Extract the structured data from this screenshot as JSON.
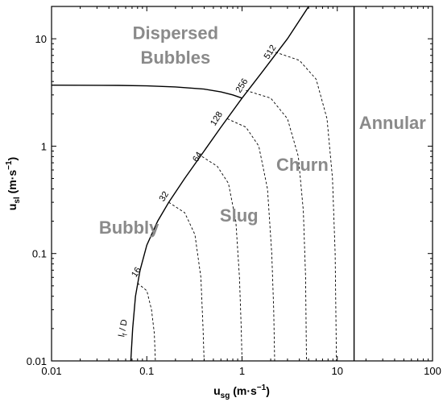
{
  "chart_data": {
    "type": "line",
    "title": "",
    "xlabel": {
      "base": "u",
      "sub": "sg",
      "unit": " (m·s",
      "sup": "−1",
      "close": ")"
    },
    "ylabel": {
      "base": "u",
      "sub": "sl",
      "unit": " (m·s",
      "sup": "−1",
      "close": ")"
    },
    "xscale": "log",
    "yscale": "log",
    "xlim": [
      0.01,
      100
    ],
    "ylim": [
      0.01,
      20
    ],
    "grid": false,
    "x_ticks": [
      0.01,
      0.1,
      1,
      10,
      100
    ],
    "x_tick_labels": [
      "0.01",
      "0.1",
      "1",
      "10",
      "100"
    ],
    "y_ticks": [
      0.01,
      0.1,
      1,
      10
    ],
    "y_tick_labels": [
      "0.01",
      "0.1",
      "1",
      "10"
    ],
    "regions": [
      {
        "label": "Dispersed",
        "x": 0.2,
        "y": 11
      },
      {
        "label": "Bubbles",
        "x": 0.2,
        "y": 6.5
      },
      {
        "label": "Churn",
        "x": 4.3,
        "y": 0.65
      },
      {
        "label": "Annular",
        "x": 38,
        "y": 1.6
      },
      {
        "label": "Slug",
        "x": 0.93,
        "y": 0.22
      },
      {
        "label": "Bubbly",
        "x": 0.065,
        "y": 0.17
      }
    ],
    "boundaries": [
      {
        "id": "bubbly-slug",
        "style": "solid",
        "points": [
          [
            0.068,
            0.01
          ],
          [
            0.071,
            0.02
          ],
          [
            0.076,
            0.04
          ],
          [
            0.085,
            0.07
          ],
          [
            0.1,
            0.12
          ],
          [
            0.13,
            0.2
          ],
          [
            0.17,
            0.3
          ],
          [
            0.25,
            0.5
          ],
          [
            0.4,
            0.9
          ],
          [
            0.6,
            1.5
          ],
          [
            1,
            2.8
          ],
          [
            1.6,
            4.8
          ],
          [
            3,
            10
          ],
          [
            5,
            20
          ]
        ]
      },
      {
        "id": "dispersed-bubbles",
        "style": "solid",
        "points": [
          [
            0.01,
            3.7
          ],
          [
            0.05,
            3.68
          ],
          [
            0.1,
            3.64
          ],
          [
            0.2,
            3.56
          ],
          [
            0.4,
            3.4
          ],
          [
            0.6,
            3.2
          ],
          [
            0.8,
            3.0
          ],
          [
            1,
            2.8
          ]
        ]
      },
      {
        "id": "annular",
        "style": "solid",
        "points": [
          [
            15,
            0.01
          ],
          [
            15,
            20
          ]
        ]
      }
    ],
    "contours": [
      {
        "label": "16",
        "label_x": 0.082,
        "label_y": 0.065,
        "points": [
          [
            0.08,
            0.053
          ],
          [
            0.1,
            0.045
          ],
          [
            0.112,
            0.03
          ],
          [
            0.12,
            0.018
          ],
          [
            0.123,
            0.01
          ]
        ]
      },
      {
        "label": "32",
        "label_x": 0.16,
        "label_y": 0.33,
        "points": [
          [
            0.17,
            0.3
          ],
          [
            0.25,
            0.24
          ],
          [
            0.32,
            0.15
          ],
          [
            0.37,
            0.06
          ],
          [
            0.39,
            0.02
          ],
          [
            0.4,
            0.01
          ]
        ]
      },
      {
        "label": "64",
        "label_x": 0.36,
        "label_y": 0.77,
        "points": [
          [
            0.38,
            0.8
          ],
          [
            0.55,
            0.65
          ],
          [
            0.72,
            0.45
          ],
          [
            0.86,
            0.2
          ],
          [
            0.94,
            0.06
          ],
          [
            0.98,
            0.02
          ],
          [
            1,
            0.01
          ]
        ]
      },
      {
        "label": "128",
        "label_x": 0.57,
        "label_y": 1.75,
        "points": [
          [
            0.7,
            1.8
          ],
          [
            1.1,
            1.5
          ],
          [
            1.5,
            1.0
          ],
          [
            1.85,
            0.4
          ],
          [
            2.05,
            0.1
          ],
          [
            2.15,
            0.03
          ],
          [
            2.2,
            0.01
          ]
        ]
      },
      {
        "label": "256",
        "label_x": 1.05,
        "label_y": 3.55,
        "points": [
          [
            1.1,
            3.3
          ],
          [
            2,
            2.8
          ],
          [
            3,
            1.8
          ],
          [
            3.9,
            0.8
          ],
          [
            4.4,
            0.25
          ],
          [
            4.65,
            0.06
          ],
          [
            4.75,
            0.01
          ]
        ]
      },
      {
        "label": "512",
        "label_x": 2.08,
        "label_y": 7.3,
        "points": [
          [
            2.25,
            7.5
          ],
          [
            4,
            6.3
          ],
          [
            6,
            4.2
          ],
          [
            7.8,
            1.8
          ],
          [
            8.9,
            0.5
          ],
          [
            9.5,
            0.1
          ],
          [
            9.8,
            0.01
          ]
        ]
      }
    ],
    "annotations": [
      {
        "id": "lf-over-d",
        "base": "l",
        "sub": "f",
        "rest": " / D",
        "x": 0.06,
        "y": 0.02
      }
    ]
  }
}
